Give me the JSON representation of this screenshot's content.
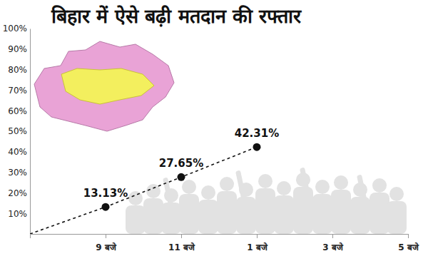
{
  "chart_data": {
    "type": "line",
    "title": "बिहार में ऐसे बढ़ी मतदान की रफ्तार",
    "categories": [
      null,
      "9 बजे",
      "11 बजे",
      "1 बजे",
      "3 बजे",
      "5 बजे"
    ],
    "values": [
      0,
      13.13,
      27.65,
      42.31,
      null,
      null
    ],
    "value_labels": [
      null,
      "13.13%",
      "27.65%",
      "42.31%",
      null,
      null
    ],
    "data_labels": true,
    "color": "#111111",
    "line_style": "dashed",
    "marker": "circle",
    "ylim": [
      0,
      100
    ],
    "yticks": [
      {
        "value": 10,
        "label": "10%"
      },
      {
        "value": 20,
        "label": "20%"
      },
      {
        "value": 30,
        "label": "30%"
      },
      {
        "value": 40,
        "label": "40%"
      },
      {
        "value": 50,
        "label": "50%"
      },
      {
        "value": 60,
        "label": "60%"
      },
      {
        "value": 70,
        "label": "70%"
      },
      {
        "value": 80,
        "label": "80%"
      },
      {
        "value": 90,
        "label": "90%"
      },
      {
        "value": 100,
        "label": "100%"
      }
    ],
    "grid": false
  }
}
